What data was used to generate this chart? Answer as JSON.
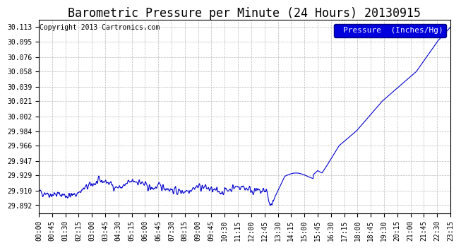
{
  "title": "Barometric Pressure per Minute (24 Hours) 20130915",
  "copyright": "Copyright 2013 Cartronics.com",
  "legend_label": "Pressure  (Inches/Hg)",
  "line_color": "#0000cc",
  "background_color": "#ffffff",
  "plot_bg_color": "#ffffff",
  "grid_color": "#aaaaaa",
  "legend_bg": "#0000dd",
  "legend_fg": "#ffffff",
  "yticks": [
    29.892,
    29.91,
    29.929,
    29.947,
    29.966,
    29.984,
    30.002,
    30.021,
    30.039,
    30.058,
    30.076,
    30.095,
    30.113
  ],
  "ylim": [
    29.882,
    30.122
  ],
  "xtick_labels": [
    "00:00",
    "00:45",
    "01:30",
    "02:15",
    "03:00",
    "03:45",
    "04:30",
    "05:15",
    "06:00",
    "06:45",
    "07:30",
    "08:15",
    "09:00",
    "09:45",
    "10:30",
    "11:15",
    "12:00",
    "12:45",
    "13:30",
    "14:15",
    "15:00",
    "15:45",
    "16:30",
    "17:15",
    "18:00",
    "18:45",
    "19:30",
    "20:15",
    "21:00",
    "21:45",
    "22:30",
    "23:15"
  ],
  "title_fontsize": 12,
  "copyright_fontsize": 7,
  "tick_fontsize": 7,
  "legend_fontsize": 8
}
